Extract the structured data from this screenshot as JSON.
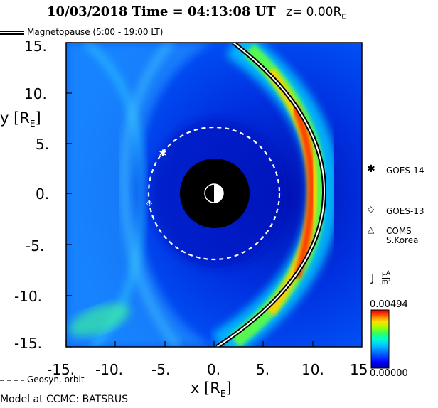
{
  "header": {
    "date": "10/03/2018",
    "time_label": "Time = 04:13:08 UT",
    "z_label": "z= 0.00R",
    "z_sub": "E"
  },
  "legend": {
    "magnetopause": "Magnetopause (5:00 - 19:00 LT)",
    "geosyn_orbit": "Geosyn. orbit",
    "model": "Model at CCMC: BATSRUS"
  },
  "satellites": [
    {
      "name": "GOES-14",
      "symbol": "✱",
      "x": -5.3,
      "y": 4.0
    },
    {
      "name": "GOES-13",
      "symbol": "◇",
      "x": -6.4,
      "y": -0.8
    },
    {
      "name": "COMS S.Korea",
      "symbol": "△"
    }
  ],
  "colorbar": {
    "label": "J",
    "unit_num": "μA",
    "unit_den": "m²",
    "max": "0.00494",
    "min": "0.00000",
    "colors": [
      "#000090",
      "#0000ff",
      "#0060ff",
      "#00c0ff",
      "#00ffd0",
      "#30ff60",
      "#a0ff00",
      "#ffe000",
      "#ff8000",
      "#ff2000",
      "#e00000"
    ]
  },
  "chart_data": {
    "type": "heatmap",
    "title": "10/03/2018 Time = 04:13:08 UT z= 0.00RE",
    "xlabel": "x [RE]",
    "ylabel": "y [RE]",
    "xlim": [
      -15,
      15
    ],
    "ylim": [
      -15,
      15
    ],
    "x_ticks": [
      "-15.",
      "-10.",
      "-5.",
      "0.",
      "5.",
      "10.",
      "15"
    ],
    "y_ticks": [
      "15.",
      "10.",
      "5.",
      "0.",
      "-5.",
      "-10.",
      "-15."
    ],
    "x_tick_values": [
      -15,
      -10,
      -5,
      0,
      5,
      10,
      15
    ],
    "y_tick_values": [
      15,
      10,
      5,
      0,
      -5,
      -10,
      -15
    ],
    "inner_boundary_radius": 3.5,
    "geosynchronous_radius": 6.6,
    "magnetopause": {
      "x": [
        2.0,
        4.5,
        7.0,
        9.0,
        10.3,
        10.9,
        11.0,
        10.9,
        10.3,
        9.0,
        7.0,
        4.5,
        0.6
      ],
      "y": [
        15.0,
        13.5,
        11.5,
        8.5,
        5.0,
        2.0,
        0.0,
        -2.0,
        -5.0,
        -8.5,
        -11.5,
        -13.5,
        -15.0
      ]
    },
    "color_scale": {
      "variable": "J",
      "min": 0.0,
      "max": 0.00494,
      "unit": "μA/m²"
    }
  }
}
